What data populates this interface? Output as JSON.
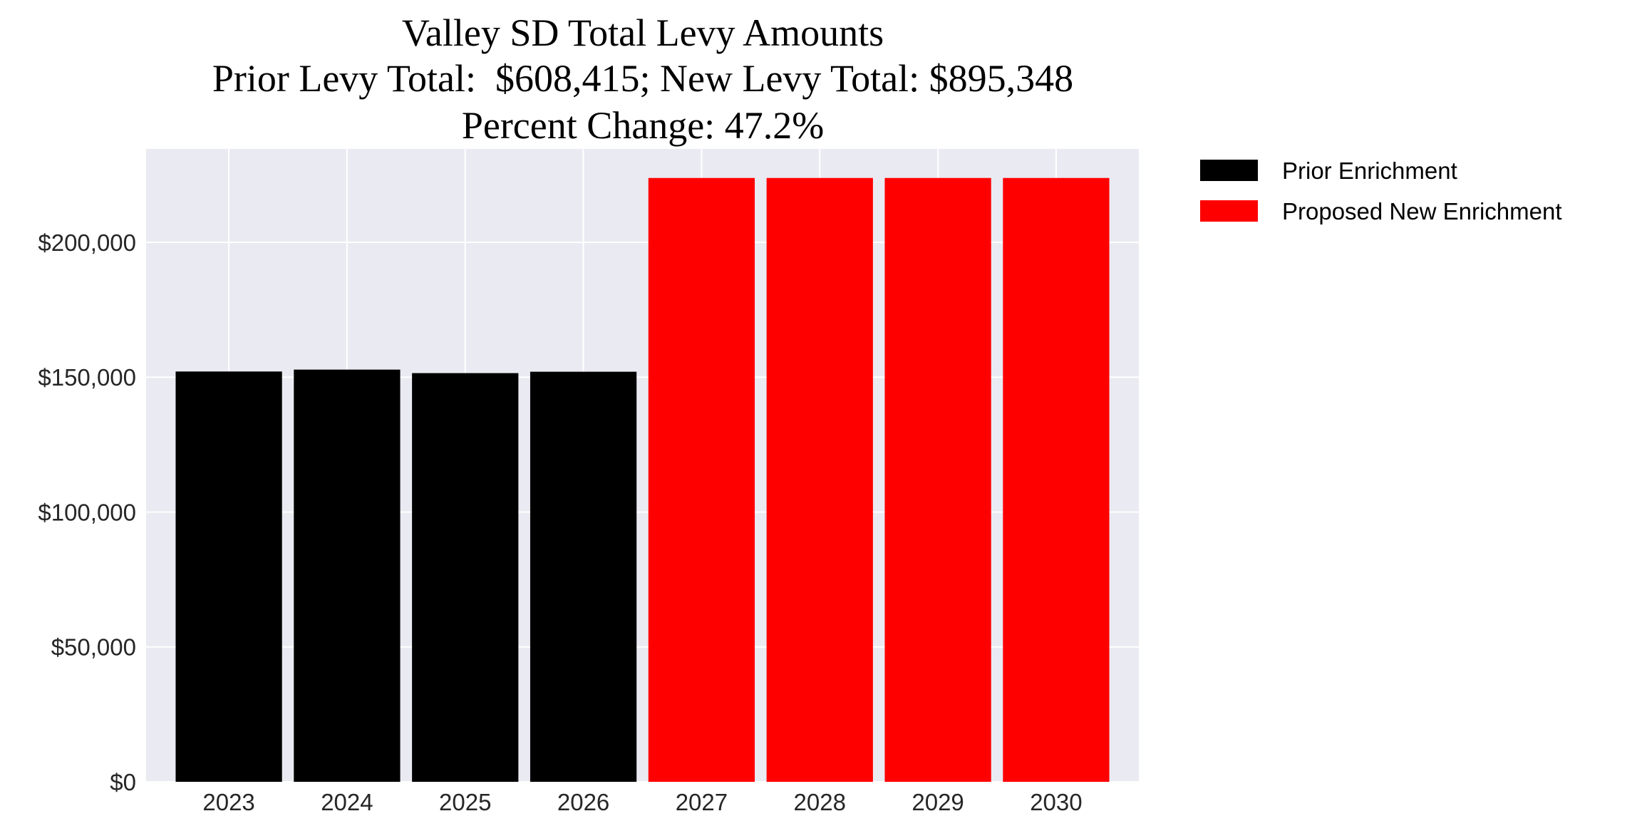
{
  "chart_data": {
    "type": "bar",
    "title": [
      "Valley SD Total Levy Amounts",
      "Prior Levy Total:  $608,415; New Levy Total: $895,348",
      "Percent Change: 47.2%"
    ],
    "xlabel": "",
    "ylabel": "",
    "categories": [
      "2023",
      "2024",
      "2025",
      "2026",
      "2027",
      "2028",
      "2029",
      "2030"
    ],
    "series": [
      {
        "name": "Prior Enrichment",
        "color": "#000000",
        "values": [
          152100,
          152800,
          151500,
          152015,
          null,
          null,
          null,
          null
        ]
      },
      {
        "name": "Proposed New Enrichment",
        "color": "#ff0000",
        "values": [
          null,
          null,
          null,
          null,
          223837,
          223837,
          223837,
          223837
        ]
      }
    ],
    "ylim": [
      0,
      234600
    ],
    "yticks": [
      0,
      50000,
      100000,
      150000,
      200000
    ],
    "ytick_labels": [
      "$0",
      "$50,000",
      "$100,000",
      "$150,000",
      "$200,000"
    ],
    "grid": true,
    "background": "#eaeaf2",
    "legend_position": "outside-right-top"
  }
}
